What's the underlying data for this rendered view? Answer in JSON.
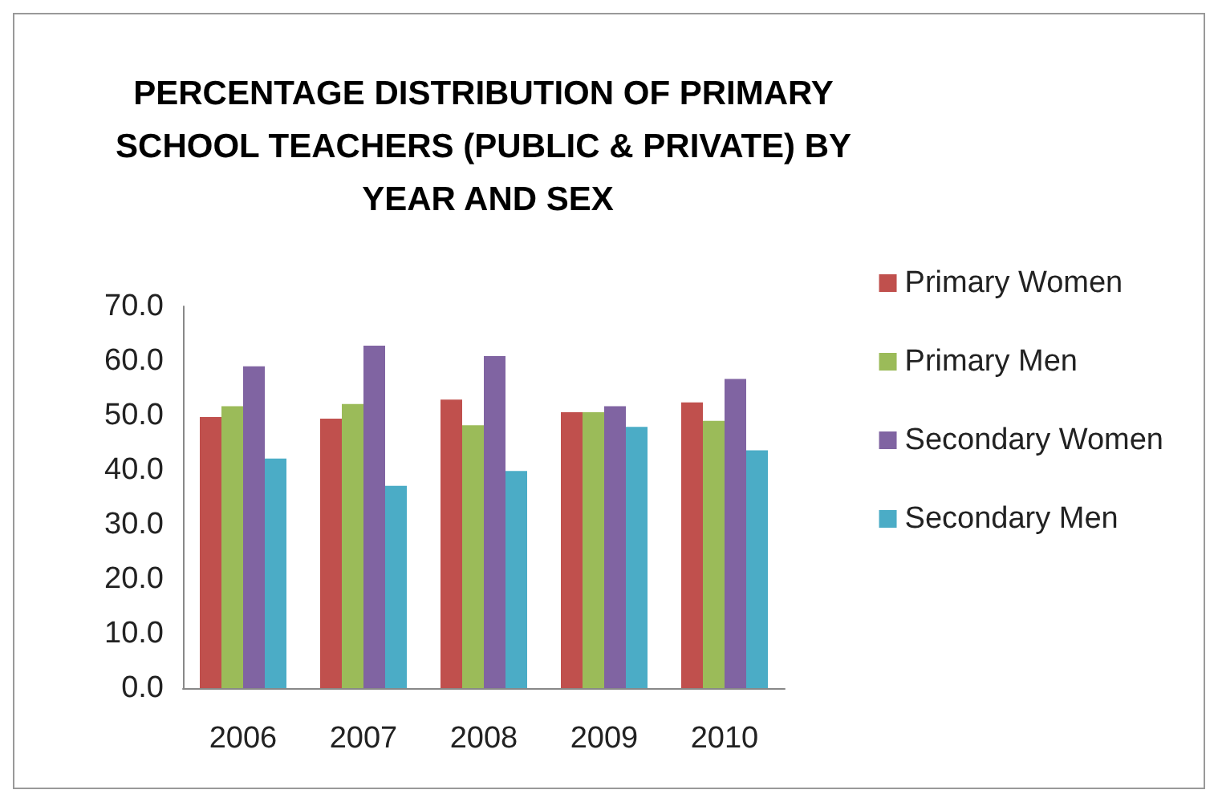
{
  "chart_data": {
    "type": "bar",
    "title": "PERCENTAGE DISTRIBUTION OF PRIMARY SCHOOL TEACHERS (PUBLIC & PRIVATE) BY YEAR AND SEX",
    "categories": [
      "2006",
      "2007",
      "2008",
      "2009",
      "2010"
    ],
    "series": [
      {
        "name": "Primary Women",
        "color": "#c0504d",
        "values": [
          49.7,
          49.4,
          52.9,
          50.6,
          52.4
        ]
      },
      {
        "name": "Primary Men",
        "color": "#9bbb59",
        "values": [
          51.7,
          52.1,
          48.2,
          50.6,
          49.0
        ]
      },
      {
        "name": "Secondary Women",
        "color": "#8064a2",
        "values": [
          59.0,
          62.8,
          60.9,
          51.7,
          56.7
        ]
      },
      {
        "name": "Secondary Men",
        "color": "#4bacc6",
        "values": [
          42.1,
          37.1,
          39.8,
          47.9,
          43.6
        ]
      }
    ],
    "ylim": [
      0,
      70
    ],
    "yticks": [
      {
        "value": 0,
        "label": "0.0"
      },
      {
        "value": 10,
        "label": "10.0"
      },
      {
        "value": 20,
        "label": "20.0"
      },
      {
        "value": 30,
        "label": "30.0"
      },
      {
        "value": 40,
        "label": "40.0"
      },
      {
        "value": 50,
        "label": "50.0"
      },
      {
        "value": 60,
        "label": "60.0"
      },
      {
        "value": 70,
        "label": "70.0"
      }
    ],
    "grid": false,
    "legend": "right"
  }
}
